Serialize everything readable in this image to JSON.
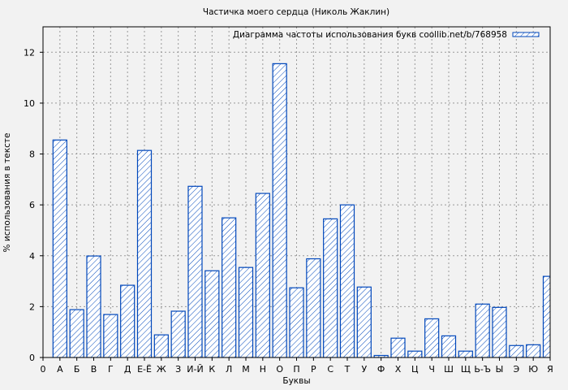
{
  "chart_data": {
    "type": "bar",
    "title": "Частичка моего сердца (Николь Жаклин)",
    "xlabel": "Буквы",
    "ylabel": "% использования в тексте",
    "legend": {
      "label": "Диаграмма частоты использования букв coollib.net/b/768958",
      "position": "top-right"
    },
    "x_origin_label": "0",
    "categories": [
      "А",
      "Б",
      "В",
      "Г",
      "Д",
      "Е-Ё",
      "Ж",
      "З",
      "И-Й",
      "К",
      "Л",
      "М",
      "Н",
      "О",
      "П",
      "Р",
      "С",
      "Т",
      "У",
      "Ф",
      "Х",
      "Ц",
      "Ч",
      "Ш",
      "Щ",
      "Ь-Ъ",
      "Ы",
      "Э",
      "Ю",
      "Я"
    ],
    "values": [
      8.55,
      1.88,
      3.99,
      1.69,
      2.84,
      8.14,
      0.89,
      1.82,
      6.73,
      3.41,
      5.49,
      3.54,
      6.45,
      11.55,
      2.74,
      3.88,
      5.45,
      6.0,
      2.77,
      0.08,
      0.76,
      0.25,
      1.52,
      0.85,
      0.25,
      2.1,
      1.97,
      0.47,
      0.5,
      3.19
    ],
    "ylim": [
      0,
      13
    ],
    "xlim": [
      0,
      30
    ],
    "yticks": [
      0,
      2,
      4,
      6,
      8,
      10,
      12
    ],
    "grid": true,
    "bar_color": "#0047bb",
    "fill": "diagonal-hatch"
  }
}
